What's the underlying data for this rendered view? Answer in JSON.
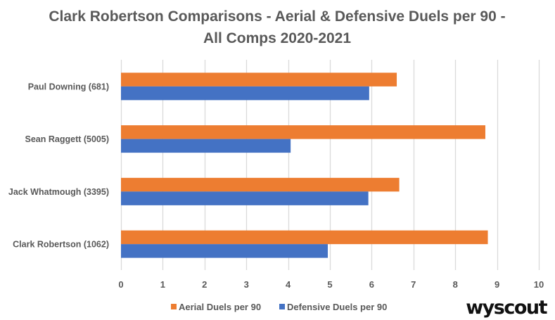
{
  "chart_data": {
    "type": "bar",
    "orientation": "horizontal",
    "title": "Clark Robertson Comparisons - Aerial & Defensive Duels per 90 - All Comps 2020-2021",
    "title_lines": [
      "Clark Robertson Comparisons - Aerial & Defensive Duels per 90 -",
      "All Comps 2020-2021"
    ],
    "categories": [
      "Paul Downing (681)",
      "Sean Raggett (5005)",
      "Jack Whatmough (3395)",
      "Clark Robertson (1062)"
    ],
    "series": [
      {
        "name": "Aerial Duels per 90",
        "color": "#ED7D31",
        "values": [
          6.6,
          8.72,
          6.66,
          8.78
        ]
      },
      {
        "name": "Defensive Duels per 90",
        "color": "#4472C4",
        "values": [
          5.94,
          4.06,
          5.92,
          4.95
        ]
      }
    ],
    "xlabel": "",
    "ylabel": "",
    "xlim": [
      0,
      10
    ],
    "xticks": [
      0,
      1,
      2,
      3,
      4,
      5,
      6,
      7,
      8,
      9,
      10
    ],
    "grid": true,
    "gridline_color": "#D9D9D9",
    "legend_position": "bottom"
  },
  "branding": {
    "logo_text": "wyscout"
  }
}
